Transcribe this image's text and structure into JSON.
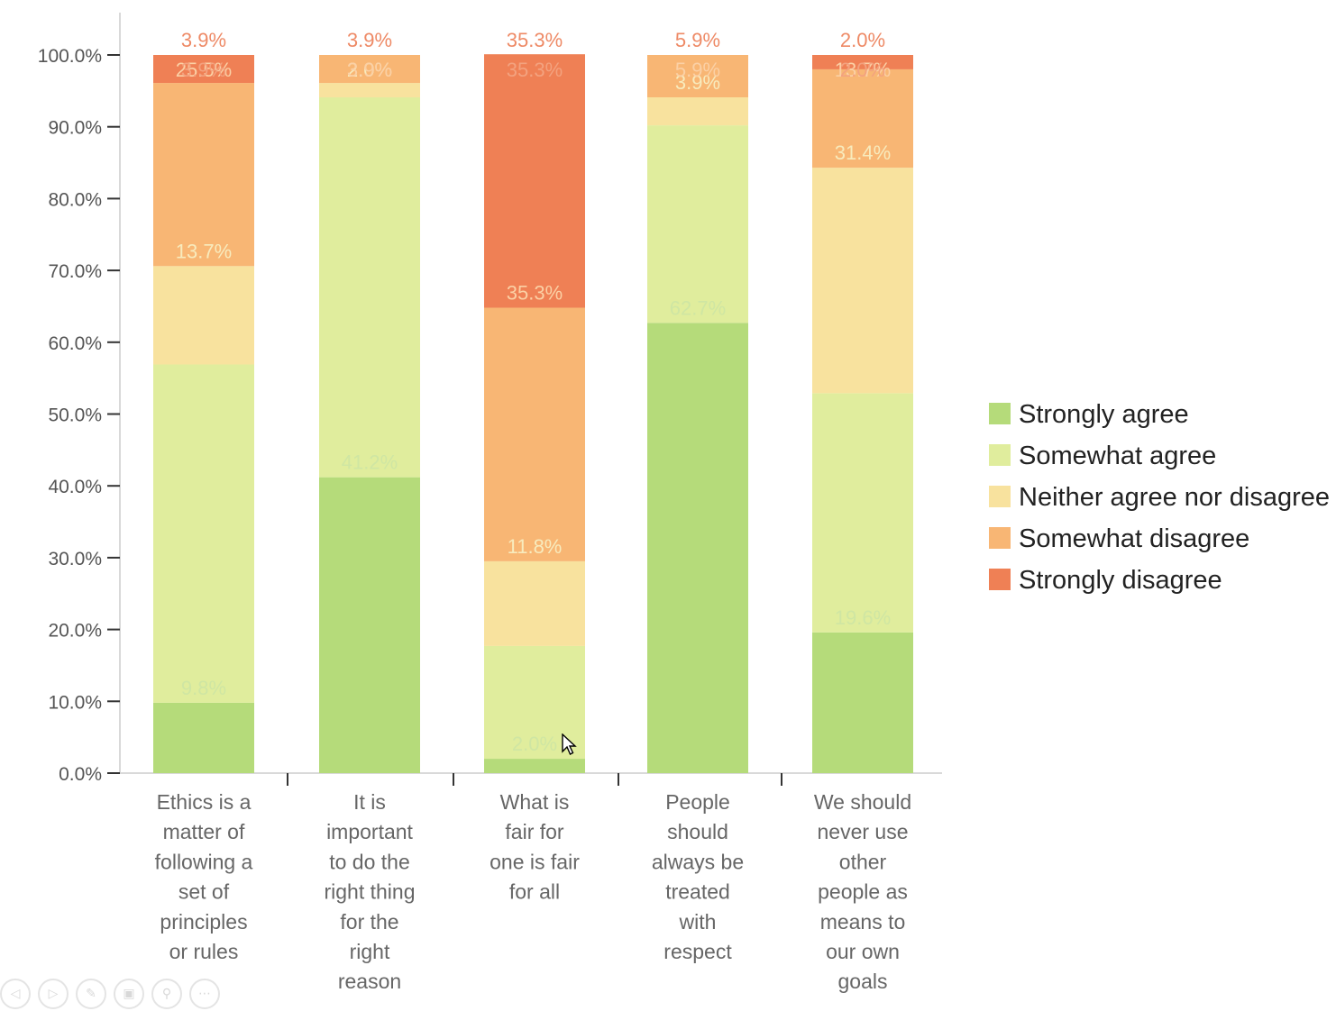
{
  "chart_data": {
    "type": "bar",
    "stacked": true,
    "categories": [
      "Ethics is a matter of following a set of principles or rules",
      "It is important to do the right thing for the right reason",
      "What is fair for one is fair for all",
      "People should always be treated with respect",
      "We should never use other people as means to our own goals"
    ],
    "category_lines": [
      [
        "Ethics is a",
        "matter of",
        "following a",
        "set of",
        "principles",
        "or rules"
      ],
      [
        "It is",
        "important",
        "to do the",
        "right thing",
        "for the",
        "right",
        "reason"
      ],
      [
        "What is",
        "fair for",
        "one is fair",
        "for all"
      ],
      [
        "People",
        "should",
        "always be",
        "treated",
        "with",
        "respect"
      ],
      [
        "We should",
        "never use",
        "other",
        "people as",
        "means to",
        "our own",
        "goals"
      ]
    ],
    "series": [
      {
        "name": "Strongly agree",
        "color": "#b5db7a",
        "label_color": "#cfe6a3",
        "values": [
          9.8,
          41.2,
          2.0,
          62.7,
          19.6
        ],
        "labels": [
          "9.8%",
          "41.2%",
          "2.0%",
          "62.7%",
          "19.6%"
        ]
      },
      {
        "name": "Somewhat agree",
        "color": "#e0ed9d",
        "label_color": "#e9f1bd",
        "values": [
          47.1,
          52.9,
          15.7,
          27.5,
          33.3
        ],
        "labels": [
          "",
          "",
          "",
          "",
          ""
        ]
      },
      {
        "name": "Neither agree nor disagree",
        "color": "#f8e29e",
        "label_color": "#f8ebbd",
        "values": [
          13.7,
          2.0,
          11.8,
          3.9,
          31.4
        ],
        "labels": [
          "13.7%",
          "2.0%",
          "11.8%",
          "3.9%",
          "31.4%"
        ]
      },
      {
        "name": "Somewhat disagree",
        "color": "#f8b674",
        "label_color": "#fbd0a5",
        "values": [
          25.5,
          3.9,
          35.3,
          5.9,
          13.7
        ],
        "labels": [
          "25.5%",
          "3.9%",
          "35.3%",
          "5.9%",
          "13.7%"
        ]
      },
      {
        "name": "Strongly disagree",
        "color": "#ef8055",
        "label_color": "#f3a27f",
        "values": [
          3.9,
          0.0,
          35.3,
          0.0,
          2.0
        ],
        "labels": [
          "3.9%",
          "",
          "35.3%",
          "",
          "2.0%"
        ]
      }
    ],
    "top_labels": [
      "3.9%",
      "3.9%",
      "35.3%",
      "5.9%",
      "2.0%"
    ],
    "top_label_color": "#ee8a66",
    "ylim": [
      0,
      100
    ],
    "yticks": [
      "0.0%",
      "10.0%",
      "20.0%",
      "30.0%",
      "40.0%",
      "50.0%",
      "60.0%",
      "70.0%",
      "80.0%",
      "90.0%",
      "100.0%"
    ],
    "legend_position": "right",
    "grid": false
  },
  "toolbar": {
    "buttons": [
      {
        "icon": "prev-arrow-icon",
        "glyph": "◁"
      },
      {
        "icon": "next-arrow-icon",
        "glyph": "▷"
      },
      {
        "icon": "pen-icon",
        "glyph": "✎"
      },
      {
        "icon": "slides-icon",
        "glyph": "▣"
      },
      {
        "icon": "zoom-icon",
        "glyph": "⚲"
      },
      {
        "icon": "more-icon",
        "glyph": "⋯"
      }
    ]
  }
}
